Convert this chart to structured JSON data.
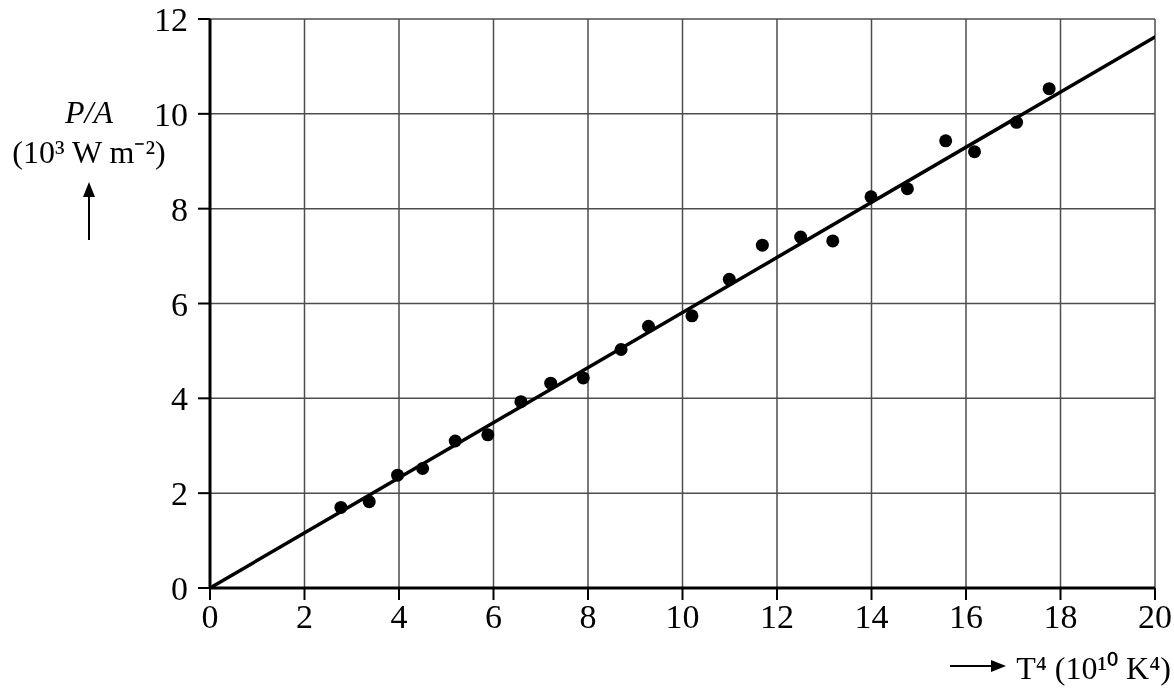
{
  "chart_data": {
    "type": "scatter",
    "xlabel": "T⁴ (10¹⁰ K⁴)",
    "ylabel": "P/A (10³ W m⁻²)",
    "xlim": [
      0,
      20
    ],
    "ylim": [
      0,
      12
    ],
    "xticks": [
      0,
      2,
      4,
      6,
      8,
      10,
      12,
      14,
      16,
      18,
      20
    ],
    "yticks": [
      0,
      2,
      4,
      6,
      8,
      10,
      12
    ],
    "grid": true,
    "marker": "circle",
    "series": [
      {
        "color": "#000000",
        "x": [
          2.77,
          3.37,
          3.97,
          4.5,
          5.19,
          5.88,
          6.58,
          7.21,
          7.9,
          8.7,
          9.28,
          10.2,
          10.99,
          11.69,
          12.5,
          13.18,
          13.99,
          14.76,
          15.57,
          16.18,
          17.07,
          17.76
        ],
        "values": [
          1.7,
          1.82,
          2.38,
          2.52,
          3.1,
          3.23,
          3.93,
          4.32,
          4.43,
          5.03,
          5.52,
          5.74,
          6.51,
          7.23,
          7.4,
          7.32,
          8.25,
          8.42,
          9.43,
          9.2,
          9.82,
          10.53
        ]
      },
      {
        "type": "line",
        "color": "#000000",
        "marker": "none",
        "x": [
          0,
          20
        ],
        "values": [
          0,
          11.62
        ]
      }
    ]
  }
}
